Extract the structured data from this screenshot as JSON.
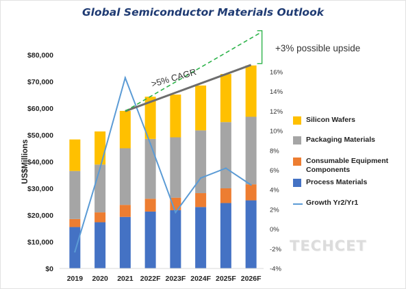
{
  "chart_data": {
    "type": "bar",
    "stacked": true,
    "title": "Global Semiconductor Materials Outlook",
    "ylabel": "US$Millions",
    "ylim": [
      0,
      80000
    ],
    "yticks": [
      "$0",
      "$10,000",
      "$20,000",
      "$30,000",
      "$40,000",
      "$50,000",
      "$60,000",
      "$70,000",
      "$80,000"
    ],
    "y2lim": [
      -4,
      16
    ],
    "y2ticks": [
      "-4%",
      "-2%",
      "0%",
      "2%",
      "4%",
      "6%",
      "8%",
      "10%",
      "12%",
      "14%",
      "16%"
    ],
    "categories": [
      "2019",
      "2020",
      "2021",
      "2022F",
      "2023F",
      "2024F",
      "2025F",
      "2026F"
    ],
    "series": [
      {
        "name": "Process Materials",
        "color": "#4472c4",
        "values": [
          15500,
          17300,
          19300,
          21300,
          21800,
          23000,
          24500,
          25500
        ]
      },
      {
        "name": "Consumable Equipment Components",
        "color": "#ed7d31",
        "values": [
          3000,
          3700,
          4500,
          4800,
          4700,
          5200,
          5500,
          6000
        ]
      },
      {
        "name": "Packaging Materials",
        "color": "#a5a5a5",
        "values": [
          18000,
          17900,
          21200,
          22400,
          22600,
          23500,
          24800,
          25300
        ]
      },
      {
        "name": "Silicon Wafers",
        "color": "#ffc000",
        "values": [
          11800,
          12400,
          14000,
          15800,
          16000,
          16800,
          18000,
          19200
        ]
      }
    ],
    "line_series": {
      "name": "Growth Yr2/Yr1",
      "color": "#5b9bd5",
      "axis": "right",
      "values": [
        -2.3,
        6.2,
        15.4,
        8.7,
        1.7,
        5.2,
        6.2,
        4.5
      ]
    },
    "annotations": {
      "cagr_label": ">5% CAGR",
      "cagr_from": {
        "x": "2021",
        "y": 58900
      },
      "cagr_to": {
        "x": "2026F",
        "y": 76200
      },
      "upside_label": "+3% possible upside",
      "upside_to": {
        "x": "2026F",
        "y": 88000
      }
    },
    "legend_position": "right",
    "grid": false,
    "watermark": "TECHCET"
  }
}
